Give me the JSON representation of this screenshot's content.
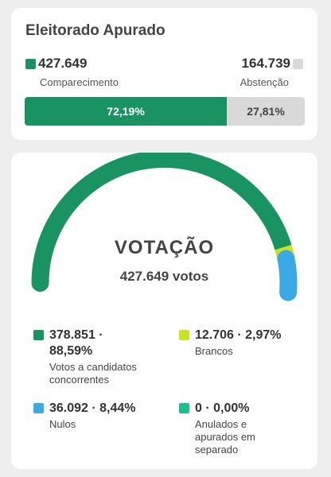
{
  "attendance": {
    "title": "Eleitorado Apurado",
    "present": {
      "value": "427.649",
      "label": "Comparecimento",
      "percent_text": "72,19%",
      "fraction": 0.7219,
      "color": "#1a9362"
    },
    "absent": {
      "value": "164.739",
      "label": "Abstenção",
      "percent_text": "27,81%",
      "fraction": 0.2781,
      "color": "#d9d9d9"
    }
  },
  "voting": {
    "title": "VOTAÇÃO",
    "total": "427.649 votos",
    "segments": [
      {
        "key": "candidates",
        "value": "378.851 · 88,59%",
        "value_line1": "378.851 ·",
        "value_line2": "88,59%",
        "label_line1": "Votos a candidatos",
        "label_line2": "concorrentes",
        "fraction": 0.8859,
        "color": "#1a9362"
      },
      {
        "key": "blank",
        "value": "12.706 · 2,97%",
        "label": "Brancos",
        "fraction": 0.0297,
        "color": "#c8e41e"
      },
      {
        "key": "null",
        "value": "36.092 · 8,44%",
        "label": "Nulos",
        "fraction": 0.0844,
        "color": "#3ba8e8"
      },
      {
        "key": "annulled",
        "value": "0 · 0,00%",
        "label_line1": "Anulados e",
        "label_line2": "apurados em",
        "label_line3": "separado",
        "fraction": 0.0,
        "color": "#16c28a"
      }
    ]
  }
}
